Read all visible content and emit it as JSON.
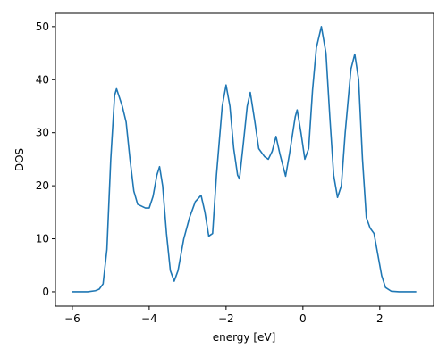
{
  "chart_data": {
    "type": "line",
    "xlabel": "energy [eV]",
    "ylabel": "DOS",
    "x": [
      -6,
      -5.8,
      -5.6,
      -5.4,
      -5.3,
      -5.2,
      -5.1,
      -5.0,
      -4.9,
      -4.85,
      -4.7,
      -4.6,
      -4.5,
      -4.4,
      -4.3,
      -4.1,
      -4.0,
      -3.9,
      -3.8,
      -3.73,
      -3.65,
      -3.55,
      -3.45,
      -3.35,
      -3.25,
      -3.1,
      -2.95,
      -2.8,
      -2.65,
      -2.55,
      -2.45,
      -2.35,
      -2.25,
      -2.1,
      -2.0,
      -1.9,
      -1.8,
      -1.7,
      -1.65,
      -1.55,
      -1.45,
      -1.37,
      -1.25,
      -1.15,
      -1.0,
      -0.9,
      -0.8,
      -0.7,
      -0.6,
      -0.45,
      -0.35,
      -0.2,
      -0.15,
      -0.05,
      0.05,
      0.15,
      0.25,
      0.35,
      0.48,
      0.6,
      0.7,
      0.8,
      0.9,
      1.0,
      1.1,
      1.25,
      1.35,
      1.45,
      1.55,
      1.65,
      1.75,
      1.85,
      1.95,
      2.05,
      2.15,
      2.3,
      2.5,
      2.95
    ],
    "series": [
      {
        "color": "#1f77b4",
        "values": [
          0,
          0,
          0,
          0.2,
          0.5,
          1.5,
          8,
          25,
          37,
          38.3,
          35,
          32,
          25,
          19,
          16.5,
          15.8,
          15.8,
          18,
          22,
          23.6,
          20,
          11,
          4,
          2,
          4,
          10,
          14,
          17,
          18.2,
          15,
          10.5,
          11,
          22,
          35,
          39,
          35,
          27,
          22,
          21.3,
          28,
          35,
          37.6,
          32,
          27,
          25.5,
          25,
          26.5,
          29.3,
          26,
          21.8,
          26,
          33,
          34.3,
          30,
          25,
          27,
          38,
          46,
          50,
          45,
          33,
          22,
          17.8,
          20,
          30,
          42,
          44.8,
          40,
          25,
          14,
          12,
          11,
          7,
          3,
          0.8,
          0.1,
          0,
          0
        ]
      }
    ],
    "xlim": [
      -6.44,
      3.4
    ],
    "ylim": [
      -2.7,
      52.5
    ],
    "xticks": [
      {
        "value": -6,
        "label": "−6"
      },
      {
        "value": -4,
        "label": "−4"
      },
      {
        "value": -2,
        "label": "−2"
      },
      0,
      2
    ],
    "yticks": [
      0,
      10,
      20,
      30,
      40,
      50
    ]
  }
}
